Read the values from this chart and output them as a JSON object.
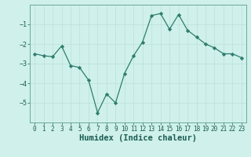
{
  "x": [
    0,
    1,
    2,
    3,
    4,
    5,
    6,
    7,
    8,
    9,
    10,
    11,
    12,
    13,
    14,
    15,
    16,
    17,
    18,
    19,
    20,
    21,
    22,
    23
  ],
  "y": [
    -2.5,
    -2.6,
    -2.65,
    -2.1,
    -3.1,
    -3.2,
    -3.85,
    -5.5,
    -4.55,
    -5.0,
    -3.5,
    -2.6,
    -1.9,
    -0.55,
    -0.45,
    -1.25,
    -0.5,
    -1.3,
    -1.65,
    -2.0,
    -2.2,
    -2.5,
    -2.5,
    -2.7
  ],
  "line_color": "#2e7d6e",
  "marker": "D",
  "markersize": 2.2,
  "linewidth": 0.9,
  "bg_color": "#cff0eb",
  "grid_color": "#b0d8d2",
  "xlabel": "Humidex (Indice chaleur)",
  "xlim": [
    -0.5,
    23.5
  ],
  "ylim": [
    -6.0,
    0.0
  ],
  "yticks": [
    -5,
    -4,
    -3,
    -2,
    -1
  ],
  "xticks": [
    0,
    1,
    2,
    3,
    4,
    5,
    6,
    7,
    8,
    9,
    10,
    11,
    12,
    13,
    14,
    15,
    16,
    17,
    18,
    19,
    20,
    21,
    22,
    23
  ],
  "tick_fontsize": 5.5,
  "xlabel_fontsize": 7.5,
  "tick_color": "#1a5c50",
  "axis_color": "#4a9080",
  "spine_color": "#6aaa98"
}
